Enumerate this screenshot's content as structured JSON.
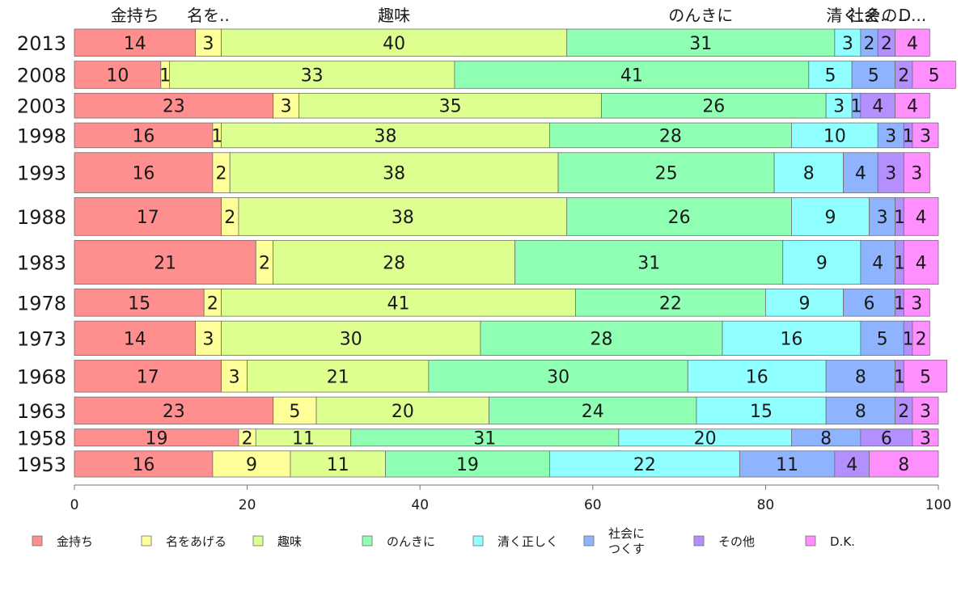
{
  "chart_data": {
    "type": "bar",
    "orientation": "horizontal",
    "stacked": true,
    "xlim": [
      0,
      100
    ],
    "xticks": [
      0,
      20,
      40,
      60,
      80,
      100
    ],
    "categories": [
      "2013",
      "2008",
      "2003",
      "1998",
      "1993",
      "1988",
      "1983",
      "1978",
      "1973",
      "1968",
      "1963",
      "1958",
      "1953"
    ],
    "weights": [
      1.15,
      1.15,
      1.05,
      1.05,
      1.7,
      1.6,
      1.85,
      1.15,
      1.45,
      1.35,
      1.15,
      0.72,
      1.1
    ],
    "series": [
      {
        "name": "金持ち",
        "color": "#ff8f8f",
        "values": [
          14,
          10,
          23,
          16,
          16,
          17,
          21,
          15,
          14,
          17,
          23,
          19,
          16
        ]
      },
      {
        "name": "名をあげる",
        "color": "#ffff99",
        "values": [
          3,
          1,
          3,
          1,
          2,
          2,
          2,
          2,
          3,
          3,
          5,
          2,
          9
        ]
      },
      {
        "name": "趣味",
        "color": "#ddff8f",
        "values": [
          40,
          33,
          35,
          38,
          38,
          38,
          28,
          41,
          30,
          21,
          20,
          11,
          11
        ]
      },
      {
        "name": "のんきに",
        "color": "#8fffb4",
        "values": [
          31,
          41,
          26,
          28,
          25,
          26,
          31,
          22,
          28,
          30,
          24,
          31,
          19
        ]
      },
      {
        "name": "清く正しく",
        "color": "#8fffff",
        "values": [
          3,
          5,
          3,
          10,
          8,
          9,
          9,
          9,
          16,
          16,
          15,
          20,
          22
        ]
      },
      {
        "name": "社会につくす",
        "color": "#8fb4ff",
        "values": [
          2,
          5,
          1,
          3,
          4,
          3,
          4,
          6,
          5,
          8,
          8,
          8,
          11
        ]
      },
      {
        "name": "その他",
        "color": "#b48fff",
        "values": [
          2,
          2,
          4,
          1,
          3,
          1,
          1,
          1,
          1,
          1,
          2,
          6,
          4
        ]
      },
      {
        "name": "D.K.",
        "color": "#ff8fff",
        "values": [
          4,
          5,
          4,
          3,
          3,
          4,
          4,
          3,
          2,
          5,
          3,
          3,
          8
        ]
      }
    ],
    "top_labels": [
      "金持ち",
      "名を..",
      "趣味",
      "のんきに",
      "清く..",
      "社会..",
      "その..",
      "D..."
    ],
    "legend": {
      "position": "bottom",
      "entries": [
        {
          "label": "金持ち",
          "color": "#ff8f8f"
        },
        {
          "label": "名をあげる",
          "color": "#ffff99"
        },
        {
          "label": "趣味",
          "color": "#ddff8f"
        },
        {
          "label": "のんきに",
          "color": "#8fffb4"
        },
        {
          "label": "清く正しく",
          "color": "#8fffff"
        },
        {
          "label": "社会に\nつくす",
          "color": "#8fb4ff"
        },
        {
          "label": "その他",
          "color": "#b48fff"
        },
        {
          "label": "D.K.",
          "color": "#ff8fff"
        }
      ]
    }
  }
}
